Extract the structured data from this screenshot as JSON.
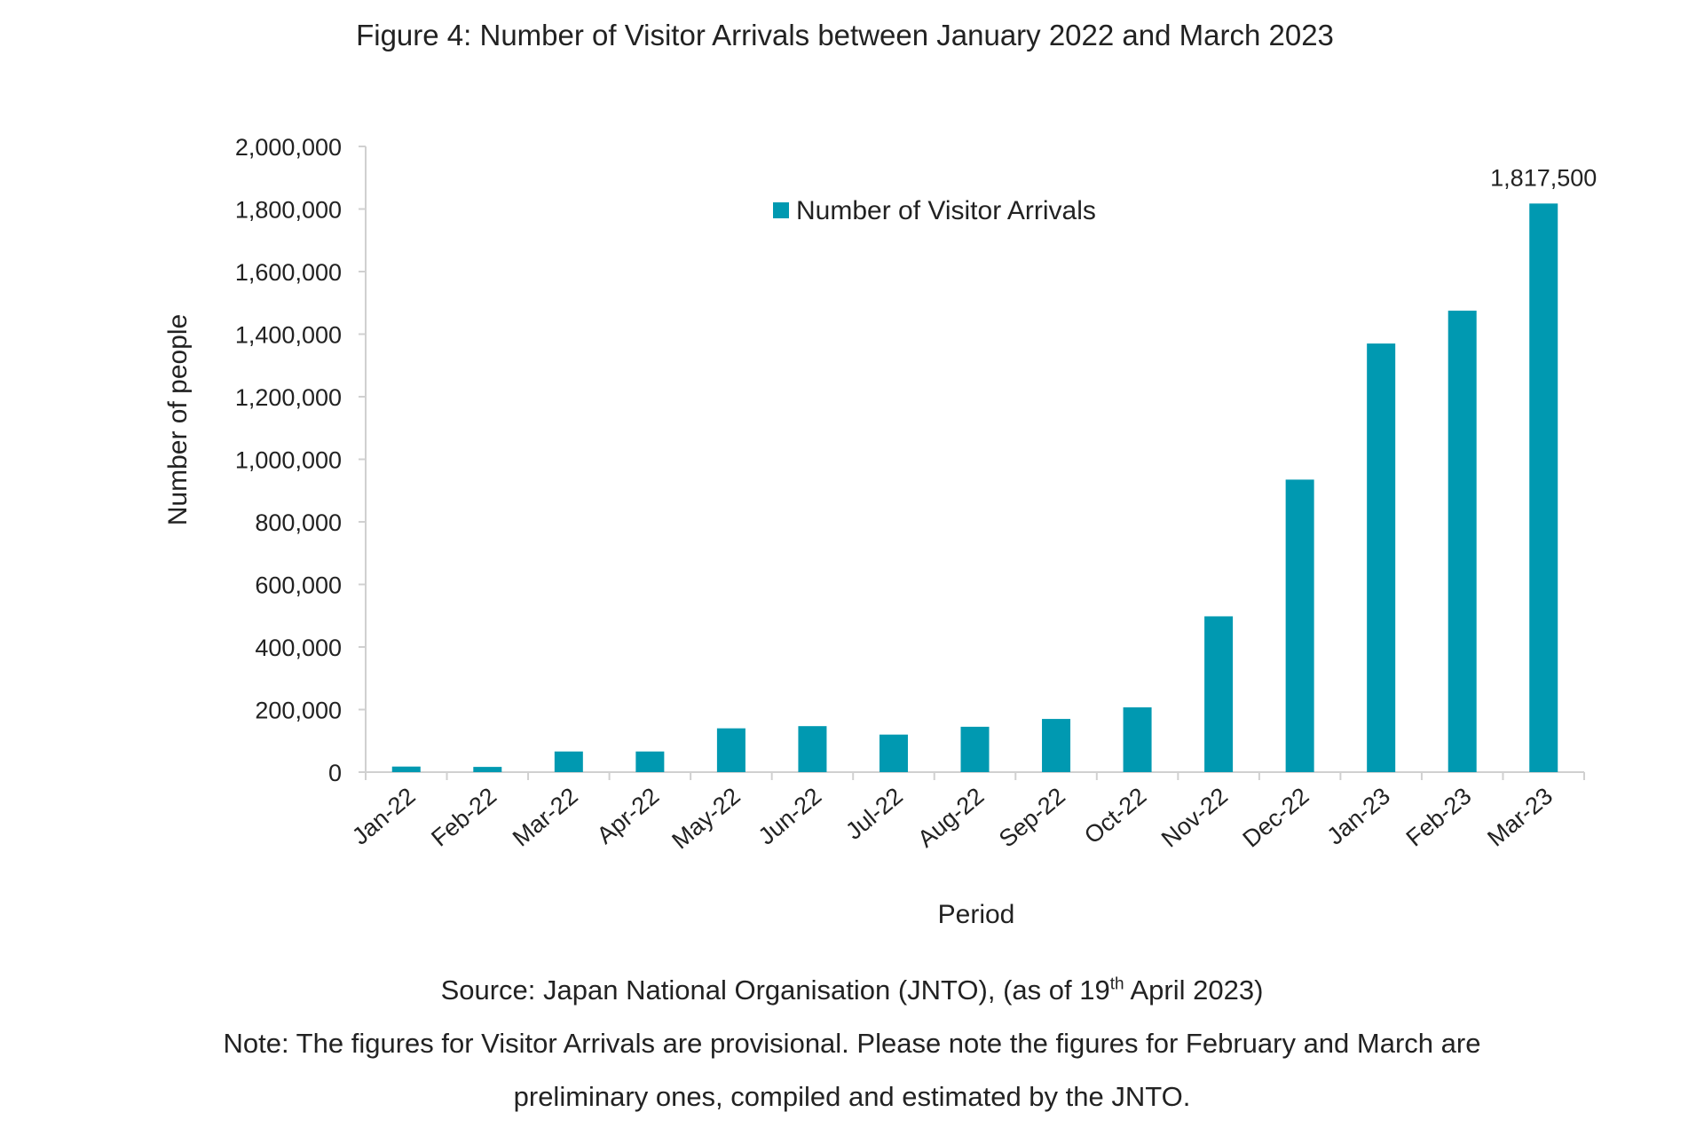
{
  "chart_data": {
    "type": "bar",
    "title": "Figure 4: Number of Visitor Arrivals between January 2022 and March 2023",
    "xlabel": "Period",
    "ylabel": "Number of people",
    "ylim": [
      0,
      2000000
    ],
    "yticks": [
      0,
      200000,
      400000,
      600000,
      800000,
      1000000,
      1200000,
      1400000,
      1600000,
      1800000,
      2000000
    ],
    "ytick_labels": [
      "0",
      "200,000",
      "400,000",
      "600,000",
      "800,000",
      "1,000,000",
      "1,200,000",
      "1,400,000",
      "1,600,000",
      "1,800,000",
      "2,000,000"
    ],
    "categories": [
      "Jan-22",
      "Feb-22",
      "Mar-22",
      "Apr-22",
      "May-22",
      "Jun-22",
      "Jul-22",
      "Aug-22",
      "Sep-22",
      "Oct-22",
      "Nov-22",
      "Dec-22",
      "Jan-23",
      "Feb-23",
      "Mar-23"
    ],
    "series": [
      {
        "name": "Number of Visitor Arrivals",
        "color": "#0099B1",
        "values": [
          17800,
          16700,
          66000,
          66000,
          140000,
          147000,
          120000,
          145000,
          170000,
          207000,
          498000,
          935000,
          1370000,
          1475000,
          1817500
        ]
      }
    ],
    "data_labels": [
      {
        "category": "Mar-23",
        "text": "1,817,500"
      }
    ],
    "legend": "top-center",
    "grid": false
  },
  "footer": {
    "source_prefix": "Source: Japan National Organisation (JNTO), (as of 19",
    "source_sup": "th",
    "source_suffix": " April 2023)",
    "note_line1": "Note: The figures for Visitor Arrivals are provisional. Please note the figures for February and March are",
    "note_line2": "preliminary ones, compiled and estimated by the JNTO."
  }
}
